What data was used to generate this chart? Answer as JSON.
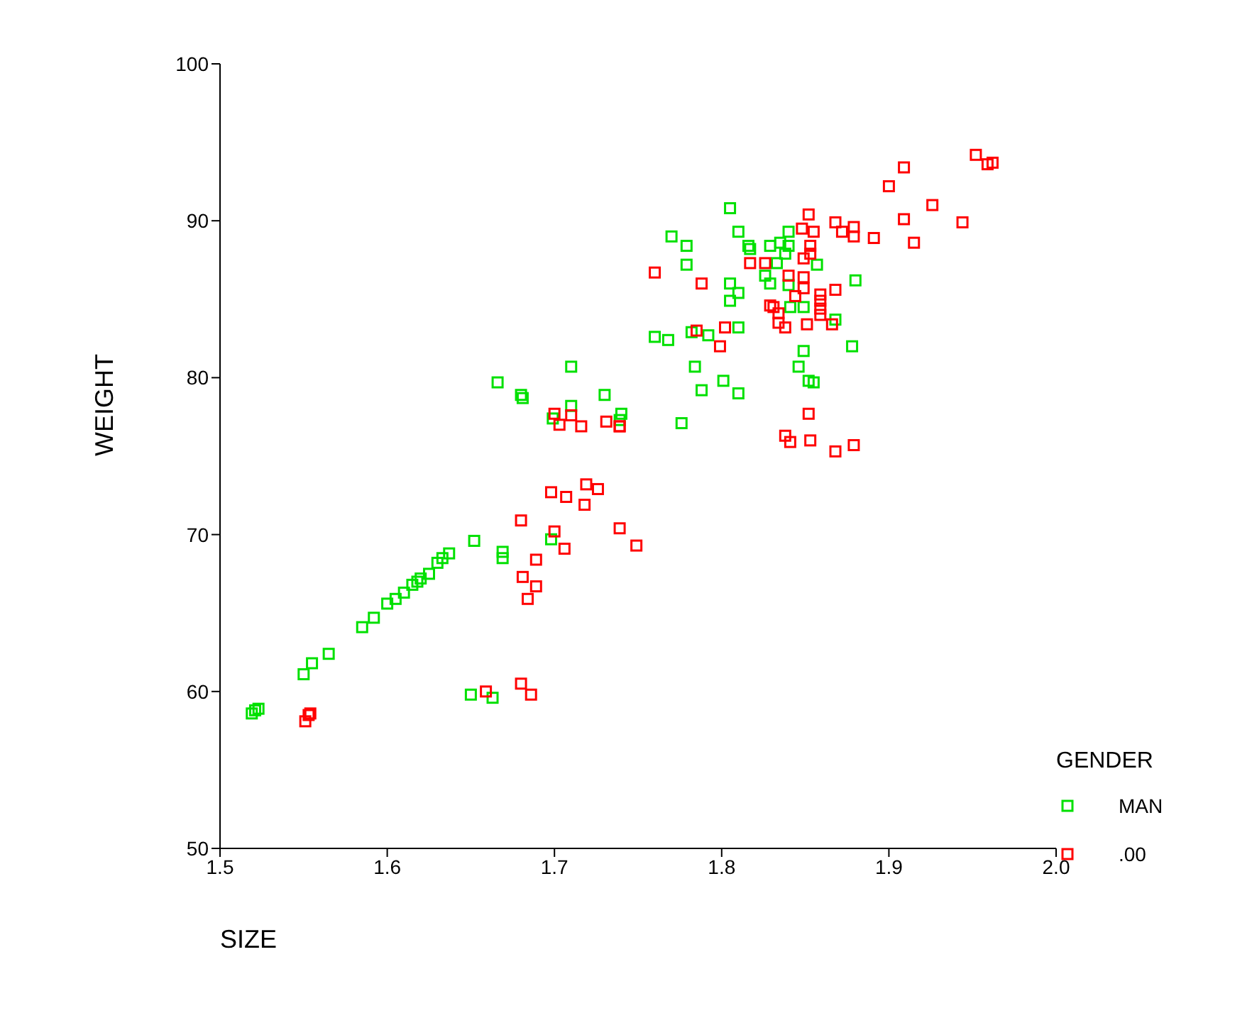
{
  "chart_data": {
    "type": "scatter",
    "xlabel": "SIZE",
    "ylabel": "WEIGHT",
    "legend_title": "GENDER",
    "legend": "right",
    "marker": "square",
    "grid": false,
    "xlim": [
      1.5,
      2.0
    ],
    "xticks": [
      {
        "value": 1.5,
        "label": "1.5"
      },
      {
        "value": 1.6,
        "label": "1.6"
      },
      {
        "value": 1.7,
        "label": "1.7"
      },
      {
        "value": 1.8,
        "label": "1.8"
      },
      {
        "value": 1.9,
        "label": "1.9"
      },
      {
        "value": 2.0,
        "label": "2.0"
      }
    ],
    "ylim": [
      50,
      100
    ],
    "yticks": [
      50,
      60,
      70,
      80,
      90,
      100
    ],
    "series": [
      {
        "name": "MAN",
        "color": "#00e000",
        "x": [
          1.519,
          1.521,
          1.523,
          1.55,
          1.555,
          1.565,
          1.585,
          1.592,
          1.6,
          1.605,
          1.61,
          1.615,
          1.618,
          1.62,
          1.625,
          1.63,
          1.633,
          1.637,
          1.652,
          1.669,
          1.669,
          1.698,
          1.65,
          1.663,
          1.666,
          1.68,
          1.681,
          1.71,
          1.71,
          1.699,
          1.73,
          1.74,
          1.739,
          1.805,
          1.81,
          1.77,
          1.779,
          1.779,
          1.816,
          1.817,
          1.829,
          1.835,
          1.84,
          1.84,
          1.838,
          1.833,
          1.826,
          1.829,
          1.84,
          1.857,
          1.88,
          1.805,
          1.81,
          1.805,
          1.841,
          1.849,
          1.868,
          1.81,
          1.792,
          1.782,
          1.76,
          1.768,
          1.878,
          1.849,
          1.784,
          1.846,
          1.801,
          1.852,
          1.855,
          1.788,
          1.81,
          1.776
        ],
        "values": [
          58.6,
          58.8,
          58.9,
          61.1,
          61.8,
          62.4,
          64.1,
          64.7,
          65.6,
          65.9,
          66.3,
          66.8,
          67.0,
          67.2,
          67.5,
          68.2,
          68.5,
          68.8,
          69.6,
          68.9,
          68.5,
          69.7,
          59.8,
          59.6,
          79.7,
          78.9,
          78.7,
          80.7,
          78.2,
          77.4,
          78.9,
          77.7,
          77.3,
          90.8,
          89.3,
          89.0,
          88.4,
          87.2,
          88.4,
          88.2,
          88.4,
          88.6,
          89.3,
          88.4,
          87.9,
          87.3,
          86.5,
          86.0,
          85.9,
          87.2,
          86.2,
          86.0,
          85.4,
          84.9,
          84.5,
          84.5,
          83.7,
          83.2,
          82.7,
          82.9,
          82.6,
          82.4,
          82.0,
          81.7,
          80.7,
          80.7,
          79.8,
          79.8,
          79.7,
          79.2,
          79.0,
          77.1
        ]
      },
      {
        "name": ".00",
        "color": "#ff0000",
        "x": [
          1.551,
          1.553,
          1.554,
          1.659,
          1.68,
          1.686,
          1.684,
          1.689,
          1.681,
          1.689,
          1.706,
          1.749,
          1.739,
          1.7,
          1.68,
          1.718,
          1.726,
          1.719,
          1.707,
          1.698,
          1.739,
          1.731,
          1.716,
          1.71,
          1.703,
          1.7,
          1.739,
          1.838,
          1.841,
          1.853,
          1.868,
          1.879,
          1.852,
          1.799,
          1.802,
          1.785,
          1.866,
          1.851,
          1.838,
          1.834,
          1.834,
          1.829,
          1.831,
          1.859,
          1.859,
          1.859,
          1.859,
          1.844,
          1.868,
          1.849,
          1.849,
          1.84,
          1.788,
          1.76,
          1.826,
          1.817,
          1.849,
          1.853,
          1.853,
          1.891,
          1.879,
          1.879,
          1.872,
          1.868,
          1.855,
          1.848,
          1.852,
          1.9,
          1.952,
          1.959,
          1.962,
          1.909,
          1.926,
          1.909,
          1.944,
          1.915
        ],
        "values": [
          58.1,
          58.5,
          58.6,
          60.0,
          60.5,
          59.8,
          65.9,
          66.7,
          67.3,
          68.4,
          69.1,
          69.3,
          70.4,
          70.2,
          70.9,
          71.9,
          72.9,
          73.2,
          72.4,
          72.7,
          76.9,
          77.2,
          76.9,
          77.6,
          77.0,
          77.7,
          76.9,
          76.3,
          75.9,
          76.0,
          75.3,
          75.7,
          77.7,
          82.0,
          83.2,
          83.0,
          83.4,
          83.4,
          83.2,
          83.5,
          84.1,
          84.6,
          84.5,
          85.3,
          84.9,
          84.4,
          84.0,
          85.2,
          85.6,
          85.7,
          86.4,
          86.5,
          86.0,
          86.7,
          87.3,
          87.3,
          87.6,
          87.9,
          88.4,
          88.9,
          89.0,
          89.6,
          89.3,
          89.9,
          89.3,
          89.5,
          90.4,
          92.2,
          94.2,
          93.6,
          93.7,
          93.4,
          91.0,
          90.1,
          89.9,
          88.6
        ]
      }
    ]
  }
}
